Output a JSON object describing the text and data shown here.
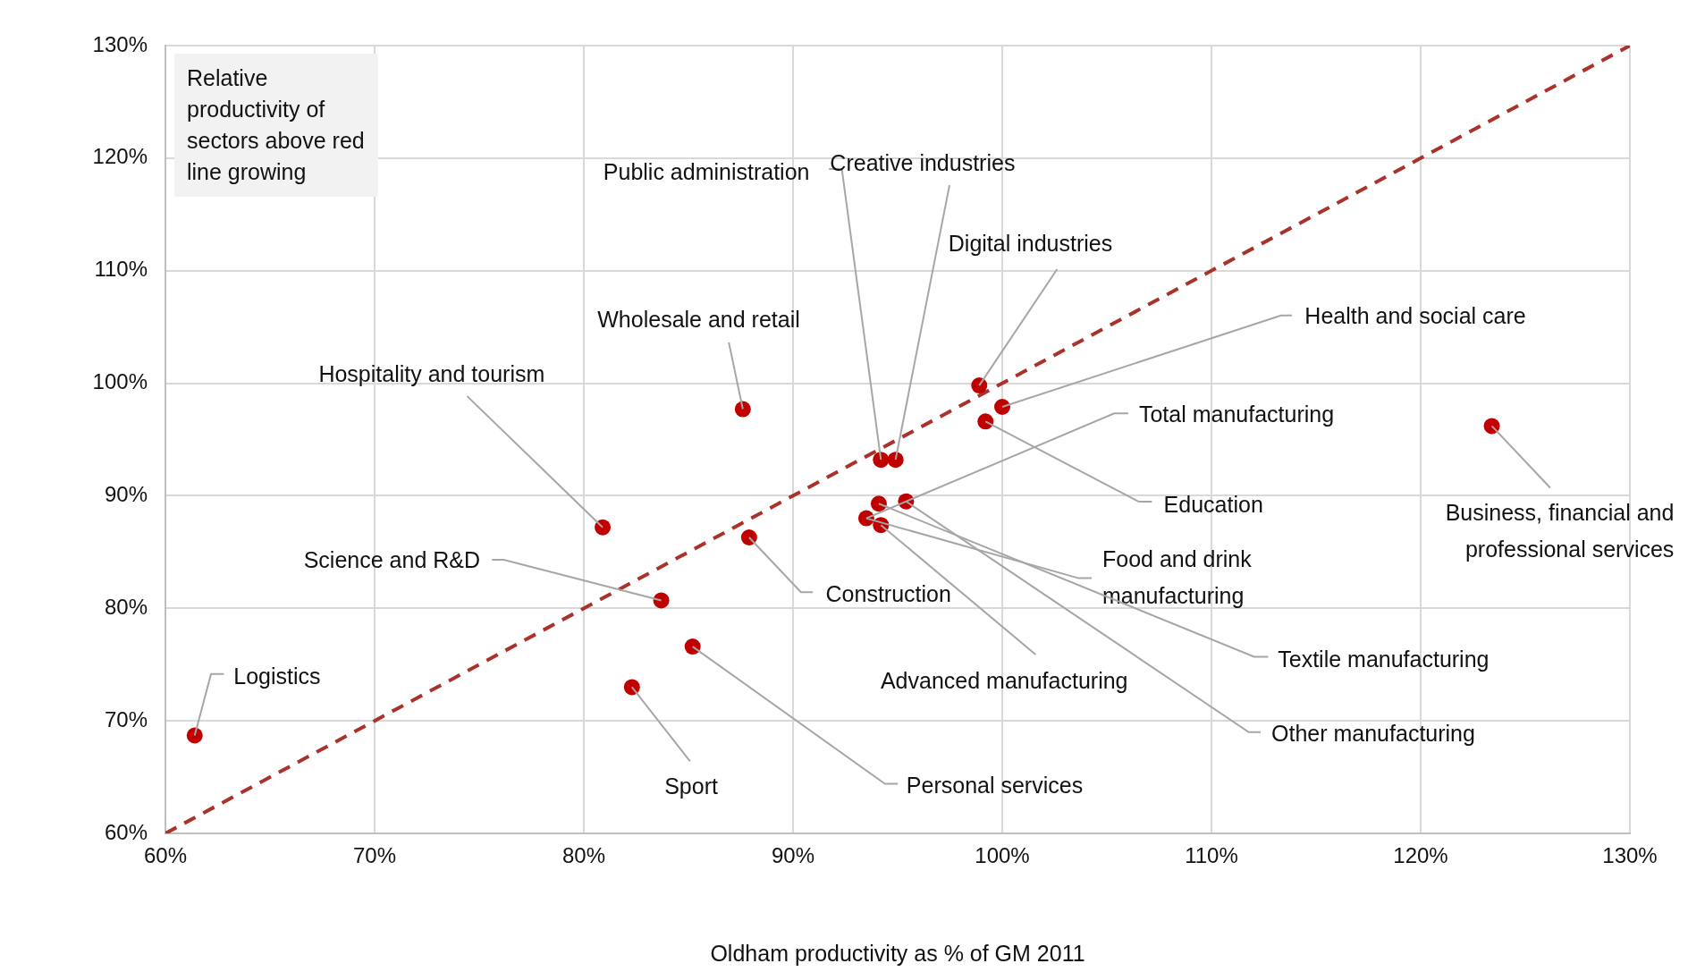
{
  "chart_data": {
    "type": "scatter",
    "xlabel": "Oldham productivity as % of GM 2011",
    "grid": true,
    "marker": "circle",
    "xlim": [
      60,
      130
    ],
    "ylim": [
      60,
      130
    ],
    "xticks": [
      {
        "value": 60,
        "label": "60%"
      },
      {
        "value": 70,
        "label": "70%"
      },
      {
        "value": 80,
        "label": "80%"
      },
      {
        "value": 90,
        "label": "90%"
      },
      {
        "value": 100,
        "label": "100%"
      },
      {
        "value": 110,
        "label": "110%"
      },
      {
        "value": 120,
        "label": "120%"
      },
      {
        "value": 130,
        "label": "130%"
      }
    ],
    "yticks": [
      {
        "value": 60,
        "label": "60%"
      },
      {
        "value": 70,
        "label": "70%"
      },
      {
        "value": 80,
        "label": "80%"
      },
      {
        "value": 90,
        "label": "90%"
      },
      {
        "value": 100,
        "label": "100%"
      },
      {
        "value": 110,
        "label": "110%"
      },
      {
        "value": 120,
        "label": "120%"
      },
      {
        "value": 130,
        "label": "130%"
      }
    ],
    "series": [
      {
        "type": "scatter",
        "color": "#c00000",
        "x": [
          94.2,
          94.9,
          98.9,
          87.6,
          100.0,
          80.9,
          93.5,
          99.2,
          123.4,
          83.7,
          87.9,
          94.1,
          94.2,
          95.4,
          61.4,
          82.3,
          85.2
        ],
        "values": [
          93.2,
          93.2,
          99.8,
          97.7,
          97.9,
          87.2,
          88.0,
          96.6,
          96.2,
          80.7,
          86.3,
          89.3,
          87.4,
          89.5,
          68.7,
          73.0,
          76.6
        ]
      },
      {
        "type": "line",
        "color": "#a9332a",
        "line_style": "dashed",
        "marker": "none",
        "x": [
          60,
          130
        ],
        "values": [
          60,
          130
        ]
      }
    ],
    "annotations": [
      {
        "text": "Public administration",
        "x": 94.2,
        "y": 93.2
      },
      {
        "text": "Creative industries",
        "x": 94.9,
        "y": 93.2
      },
      {
        "text": "Digital industries",
        "x": 98.9,
        "y": 99.8
      },
      {
        "text": "Wholesale and retail",
        "x": 87.6,
        "y": 97.7
      },
      {
        "text": "Health and social care",
        "x": 100.0,
        "y": 97.9
      },
      {
        "text": "Hospitality and tourism",
        "x": 80.9,
        "y": 87.2
      },
      {
        "text": "Total manufacturing",
        "x": 93.5,
        "y": 88.0
      },
      {
        "text": "Education",
        "x": 99.2,
        "y": 96.6
      },
      {
        "text": "Business, financial and professional services",
        "x": 123.4,
        "y": 96.2
      },
      {
        "text": "Science and R&D",
        "x": 83.7,
        "y": 80.7
      },
      {
        "text": "Construction",
        "x": 87.9,
        "y": 86.3
      },
      {
        "text": "Food and drink manufacturing",
        "x": 93.5,
        "y": 88.0
      },
      {
        "text": "Textile manufacturing",
        "x": 94.1,
        "y": 89.3
      },
      {
        "text": "Advanced manufacturing",
        "x": 94.2,
        "y": 87.4
      },
      {
        "text": "Other manufacturing",
        "x": 95.4,
        "y": 89.5
      },
      {
        "text": "Logistics",
        "x": 61.4,
        "y": 68.7
      },
      {
        "text": "Sport",
        "x": 82.3,
        "y": 73.0
      },
      {
        "text": "Personal services",
        "x": 85.2,
        "y": 76.6
      },
      "Relative productivity of sectors above red line growing"
    ]
  }
}
